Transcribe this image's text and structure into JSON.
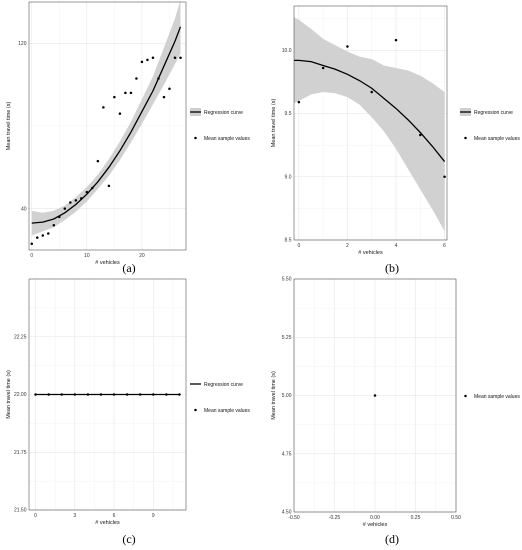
{
  "chart_data": [
    {
      "type": "scatter",
      "caption": "(a)",
      "xlabel": "# vehicles",
      "ylabel": "Mean travel time (s)",
      "xlim": [
        -0.5,
        28
      ],
      "ylim": [
        20,
        140
      ],
      "xticks": [
        0,
        10,
        20
      ],
      "yticks": [
        40,
        120
      ],
      "grid": true,
      "legend_position": "right",
      "series": [
        {
          "name": "Regression curve",
          "kind": "line",
          "x": [
            0,
            2,
            4,
            6,
            8,
            10,
            12,
            14,
            16,
            18,
            20,
            22,
            24,
            26,
            27
          ],
          "y": [
            33,
            33.5,
            35,
            38,
            42,
            47,
            53,
            60,
            68,
            77,
            87,
            97,
            109,
            121,
            128
          ],
          "band_lower": [
            27,
            29,
            31,
            34.5,
            38.5,
            43.5,
            49.5,
            56,
            63.5,
            72,
            81,
            90.5,
            100,
            110,
            115
          ],
          "band_upper": [
            39,
            38,
            39,
            41.5,
            45.5,
            50.5,
            56.5,
            64,
            72.5,
            82,
            93,
            104,
            118,
            132,
            141
          ]
        },
        {
          "name": "Mean sample values",
          "kind": "points",
          "x": [
            0,
            1,
            2,
            3,
            4,
            5,
            6,
            7,
            8,
            9,
            10,
            11,
            12,
            13,
            14,
            15,
            16,
            17,
            18,
            19,
            20,
            21,
            22,
            23,
            24,
            25,
            26,
            27
          ],
          "y": [
            23,
            26,
            27,
            28,
            32,
            36,
            40,
            43,
            44,
            45,
            48,
            50,
            63,
            89,
            51,
            94,
            86,
            96,
            96,
            103,
            111,
            112,
            113,
            103,
            94,
            98,
            113,
            113
          ]
        }
      ]
    },
    {
      "type": "scatter",
      "caption": "(b)",
      "xlabel": "# vehicles",
      "ylabel": "Mean travel time (s)",
      "xlim": [
        -0.2,
        6.1
      ],
      "ylim": [
        8.5,
        10.35
      ],
      "xticks": [
        0,
        2,
        4,
        6
      ],
      "yticks": [
        8.5,
        9.0,
        9.5,
        10.0
      ],
      "ytick_labels": [
        "8.5",
        "9.0",
        "9.5",
        "10.0"
      ],
      "grid": true,
      "legend_position": "right",
      "series": [
        {
          "name": "Regression curve",
          "kind": "line",
          "x": [
            -0.2,
            0,
            0.5,
            1,
            1.5,
            2,
            2.5,
            3,
            3.5,
            4,
            4.5,
            5,
            5.5,
            6
          ],
          "y": [
            9.92,
            9.92,
            9.91,
            9.88,
            9.85,
            9.81,
            9.76,
            9.7,
            9.62,
            9.54,
            9.45,
            9.35,
            9.24,
            9.12
          ],
          "band_lower": [
            9.58,
            9.6,
            9.65,
            9.67,
            9.66,
            9.63,
            9.57,
            9.47,
            9.36,
            9.22,
            9.06,
            8.9,
            8.74,
            8.57
          ],
          "band_upper": [
            10.26,
            10.24,
            10.17,
            10.09,
            10.04,
            9.99,
            9.95,
            9.93,
            9.88,
            9.86,
            9.84,
            9.8,
            9.74,
            9.67
          ]
        },
        {
          "name": "Mean sample values",
          "kind": "points",
          "x": [
            0,
            1,
            2,
            3,
            4,
            5,
            6
          ],
          "y": [
            9.59,
            9.86,
            10.03,
            9.67,
            10.08,
            9.33,
            9.0
          ]
        }
      ]
    },
    {
      "type": "scatter",
      "caption": "(c)",
      "xlabel": "# vehicles",
      "ylabel": "Mean travel time (s)",
      "xlim": [
        -0.5,
        11.5
      ],
      "ylim": [
        21.5,
        22.5
      ],
      "xticks": [
        0,
        3,
        6,
        9
      ],
      "yticks": [
        21.5,
        21.75,
        22.0,
        22.25
      ],
      "ytick_labels": [
        "21.50",
        "21.75",
        "22.00",
        "22.25"
      ],
      "grid": true,
      "legend_position": "right",
      "series": [
        {
          "name": "Regression curve",
          "kind": "line",
          "x": [
            0,
            11
          ],
          "y": [
            22.0,
            22.0
          ]
        },
        {
          "name": "Mean sample values",
          "kind": "points",
          "x": [
            0,
            1,
            2,
            3,
            4,
            5,
            6,
            7,
            8,
            9,
            10,
            11
          ],
          "y": [
            22.0,
            22.0,
            22.0,
            22.0,
            22.0,
            22.0,
            22.0,
            22.0,
            22.0,
            22.0,
            22.0,
            22.0
          ]
        }
      ]
    },
    {
      "type": "scatter",
      "caption": "(d)",
      "xlabel": "# vehicles",
      "ylabel": "Mean travel time (s)",
      "xlim": [
        -0.5,
        0.5
      ],
      "ylim": [
        4.5,
        5.5
      ],
      "xticks": [
        -0.5,
        -0.25,
        0.0,
        0.25,
        0.5
      ],
      "xtick_labels": [
        "-0.50",
        "-0.25",
        "0.00",
        "0.25",
        "0.50"
      ],
      "yticks": [
        4.5,
        4.75,
        5.0,
        5.25,
        5.5
      ],
      "ytick_labels": [
        "4.50",
        "4.75",
        "5.00",
        "5.25",
        "5.50"
      ],
      "grid": true,
      "legend_position": "right",
      "series": [
        {
          "name": "Mean sample values",
          "kind": "points",
          "x": [
            0.0
          ],
          "y": [
            5.0
          ]
        }
      ]
    }
  ]
}
